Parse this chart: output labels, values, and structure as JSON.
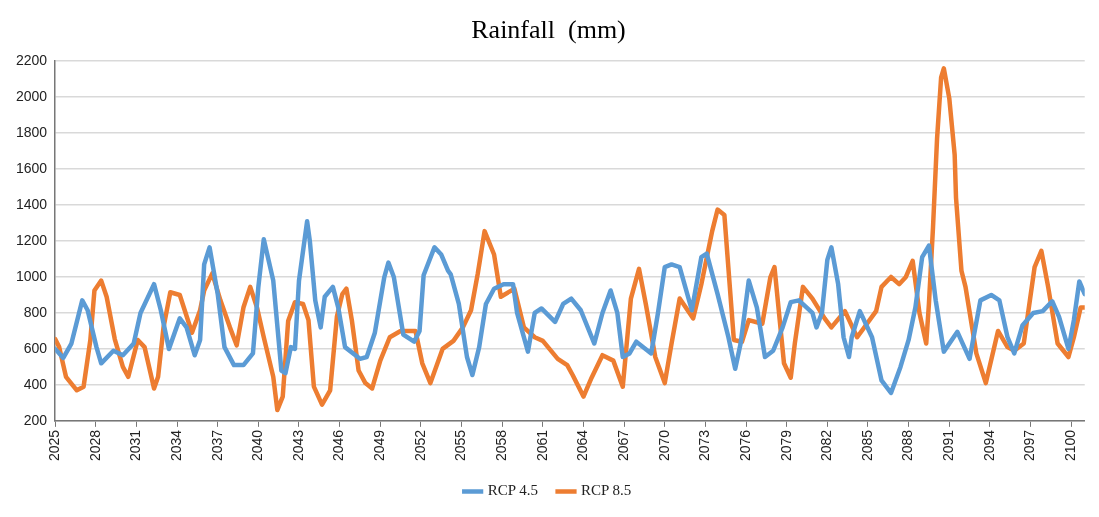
{
  "chart_data": {
    "type": "line",
    "title": "Rainfall  (mm)",
    "xlim": [
      2025,
      2101
    ],
    "xticks": [
      2025,
      2028,
      2031,
      2034,
      2037,
      2040,
      2043,
      2046,
      2049,
      2052,
      2055,
      2058,
      2061,
      2064,
      2067,
      2070,
      2073,
      2076,
      2079,
      2082,
      2085,
      2088,
      2091,
      2094,
      2097,
      2100
    ],
    "ylim": [
      200,
      2200
    ],
    "yticks": [
      200,
      400,
      600,
      800,
      1000,
      1200,
      1400,
      1600,
      1800,
      2000,
      2200
    ],
    "grid": "y",
    "legend": "bottom",
    "marker": "none",
    "line_style": "solid",
    "series": [
      {
        "name": "RCP 4.5",
        "color": "#5b9bd5",
        "x": [
          2025,
          2025.6,
          2026.2,
          2027,
          2027.4,
          2028.05,
          2028.4,
          2029.3,
          2030,
          2030.8,
          2031.3,
          2032.3,
          2032.8,
          2033.4,
          2034.2,
          2034.7,
          2035.3,
          2035.7,
          2036,
          2036.4,
          2037,
          2037.5,
          2038.2,
          2038.9,
          2039.6,
          2040,
          2040.4,
          2041.1,
          2041.7,
          2042,
          2042.4,
          2042.7,
          2043,
          2043.6,
          2043.8,
          2044.2,
          2044.6,
          2044.9,
          2045.5,
          2045.9,
          2046.4,
          2047.5,
          2048,
          2048.6,
          2049.3,
          2049.6,
          2050,
          2050.7,
          2051.5,
          2051.9,
          2052.2,
          2053,
          2053.5,
          2054,
          2054.2,
          2054.8,
          2055.4,
          2055.8,
          2056.3,
          2056.8,
          2057.4,
          2058.1,
          2058.8,
          2059.1,
          2059.9,
          2060.4,
          2060.9,
          2061.9,
          2062.5,
          2063.1,
          2063.8,
          2064.8,
          2065.4,
          2066,
          2066.5,
          2066.9,
          2067.4,
          2067.9,
          2069,
          2069.5,
          2070,
          2070.5,
          2071.1,
          2072,
          2072.7,
          2073.1,
          2073.9,
          2074.7,
          2075.2,
          2075.6,
          2076.2,
          2076.8,
          2077.4,
          2078,
          2078.7,
          2079.3,
          2079.9,
          2080.9,
          2081.2,
          2081.6,
          2082,
          2082.3,
          2082.8,
          2083.2,
          2083.6,
          2083.8,
          2084.4,
          2085.3,
          2086,
          2086.7,
          2087.4,
          2088,
          2088.5,
          2089,
          2089.5,
          2090,
          2090.6,
          2091.6,
          2092.5,
          2093.3,
          2094.1,
          2094.7,
          2095.3,
          2095.8,
          2096.4,
          2097.2,
          2097.9,
          2098.6,
          2099.1,
          2099.8,
          2100.2,
          2100.6,
          2101
        ],
        "values": [
          600,
          550,
          630,
          870,
          815,
          610,
          520,
          590,
          565,
          630,
          800,
          960,
          815,
          600,
          770,
          720,
          565,
          650,
          1070,
          1165,
          905,
          610,
          510,
          510,
          575,
          945,
          1210,
          980,
          480,
          465,
          610,
          600,
          980,
          1310,
          1200,
          870,
          720,
          890,
          945,
          830,
          610,
          545,
          555,
          690,
          1000,
          1080,
          1000,
          680,
          640,
          700,
          1010,
          1165,
          1125,
          1035,
          1015,
          850,
          555,
          455,
          610,
          850,
          935,
          960,
          960,
          800,
          585,
          800,
          825,
          750,
          850,
          880,
          815,
          630,
          800,
          925,
          800,
          555,
          575,
          640,
          575,
          800,
          1055,
          1070,
          1055,
          815,
          1110,
          1130,
          905,
          665,
          490,
          630,
          980,
          830,
          555,
          590,
          720,
          860,
          870,
          800,
          720,
          800,
          1095,
          1165,
          960,
          665,
          555,
          665,
          810,
          665,
          425,
          355,
          500,
          650,
          830,
          1110,
          1175,
          870,
          585,
          695,
          545,
          870,
          900,
          870,
          665,
          575,
          730,
          800,
          810,
          865,
          780,
          600,
          760,
          975,
          905
        ]
      },
      {
        "name": "RCP 8.5",
        "color": "#ed7d31",
        "x": [
          2025,
          2025.3,
          2025.8,
          2026.6,
          2027.1,
          2027.6,
          2027.9,
          2028.4,
          2028.8,
          2029.4,
          2030,
          2030.4,
          2031.1,
          2031.6,
          2032.3,
          2032.6,
          2033,
          2033.5,
          2034.2,
          2035.1,
          2035.7,
          2036,
          2036.6,
          2037.2,
          2037.9,
          2038.4,
          2038.9,
          2039.4,
          2039.9,
          2040.4,
          2041.1,
          2041.4,
          2041.8,
          2042.2,
          2042.7,
          2043.3,
          2043.7,
          2044.1,
          2044.7,
          2045.3,
          2045.8,
          2046.2,
          2046.5,
          2046.9,
          2047.4,
          2047.9,
          2048.4,
          2049,
          2049.7,
          2050.5,
          2051.6,
          2052.1,
          2052.7,
          2053.6,
          2054.4,
          2055.1,
          2055.7,
          2056.2,
          2056.7,
          2057.4,
          2057.9,
          2058.9,
          2059.6,
          2060.4,
          2061,
          2062.1,
          2062.8,
          2063.2,
          2064,
          2064.6,
          2065.4,
          2066.2,
          2066.9,
          2067.5,
          2068.1,
          2068.6,
          2069.3,
          2070,
          2070.5,
          2071.1,
          2072.1,
          2072.7,
          2073.5,
          2073.9,
          2074.4,
          2075.1,
          2075.7,
          2076.2,
          2077.2,
          2077.8,
          2078.1,
          2078.8,
          2079.3,
          2079.6,
          2080.2,
          2080.9,
          2081.8,
          2082.3,
          2083.3,
          2084.2,
          2085.6,
          2086,
          2086.7,
          2087.3,
          2087.8,
          2088.3,
          2088.8,
          2089.3,
          2089.5,
          2089.8,
          2090.1,
          2090.4,
          2090.6,
          2091,
          2091.4,
          2091.5,
          2091.9,
          2092.2,
          2093,
          2093.7,
          2094.6,
          2095.3,
          2095.8,
          2096.5,
          2097.3,
          2097.8,
          2098.3,
          2099,
          2099.8,
          2100.2,
          2100.7,
          2101
        ],
        "values": [
          655,
          610,
          445,
          370,
          390,
          650,
          925,
          980,
          890,
          655,
          500,
          445,
          650,
          610,
          380,
          445,
          720,
          915,
          900,
          690,
          815,
          925,
          1020,
          870,
          720,
          620,
          830,
          945,
          830,
          665,
          445,
          260,
          335,
          755,
          860,
          850,
          760,
          390,
          290,
          370,
          780,
          905,
          935,
          760,
          480,
          410,
          380,
          535,
          665,
          700,
          700,
          520,
          410,
          600,
          645,
          720,
          815,
          1020,
          1255,
          1125,
          890,
          935,
          720,
          665,
          645,
          545,
          510,
          455,
          335,
          440,
          565,
          535,
          390,
          880,
          1045,
          850,
          555,
          410,
          630,
          880,
          770,
          960,
          1255,
          1375,
          1345,
          650,
          640,
          760,
          740,
          1000,
          1055,
          520,
          440,
          630,
          945,
          880,
          770,
          720,
          810,
          665,
          810,
          945,
          1000,
          960,
          1000,
          1090,
          800,
          630,
          850,
          1275,
          1770,
          2110,
          2160,
          1995,
          1680,
          1440,
          1035,
          945,
          575,
          410,
          700,
          610,
          590,
          630,
          1055,
          1145,
          945,
          630,
          555,
          665,
          830,
          830
        ]
      }
    ]
  }
}
